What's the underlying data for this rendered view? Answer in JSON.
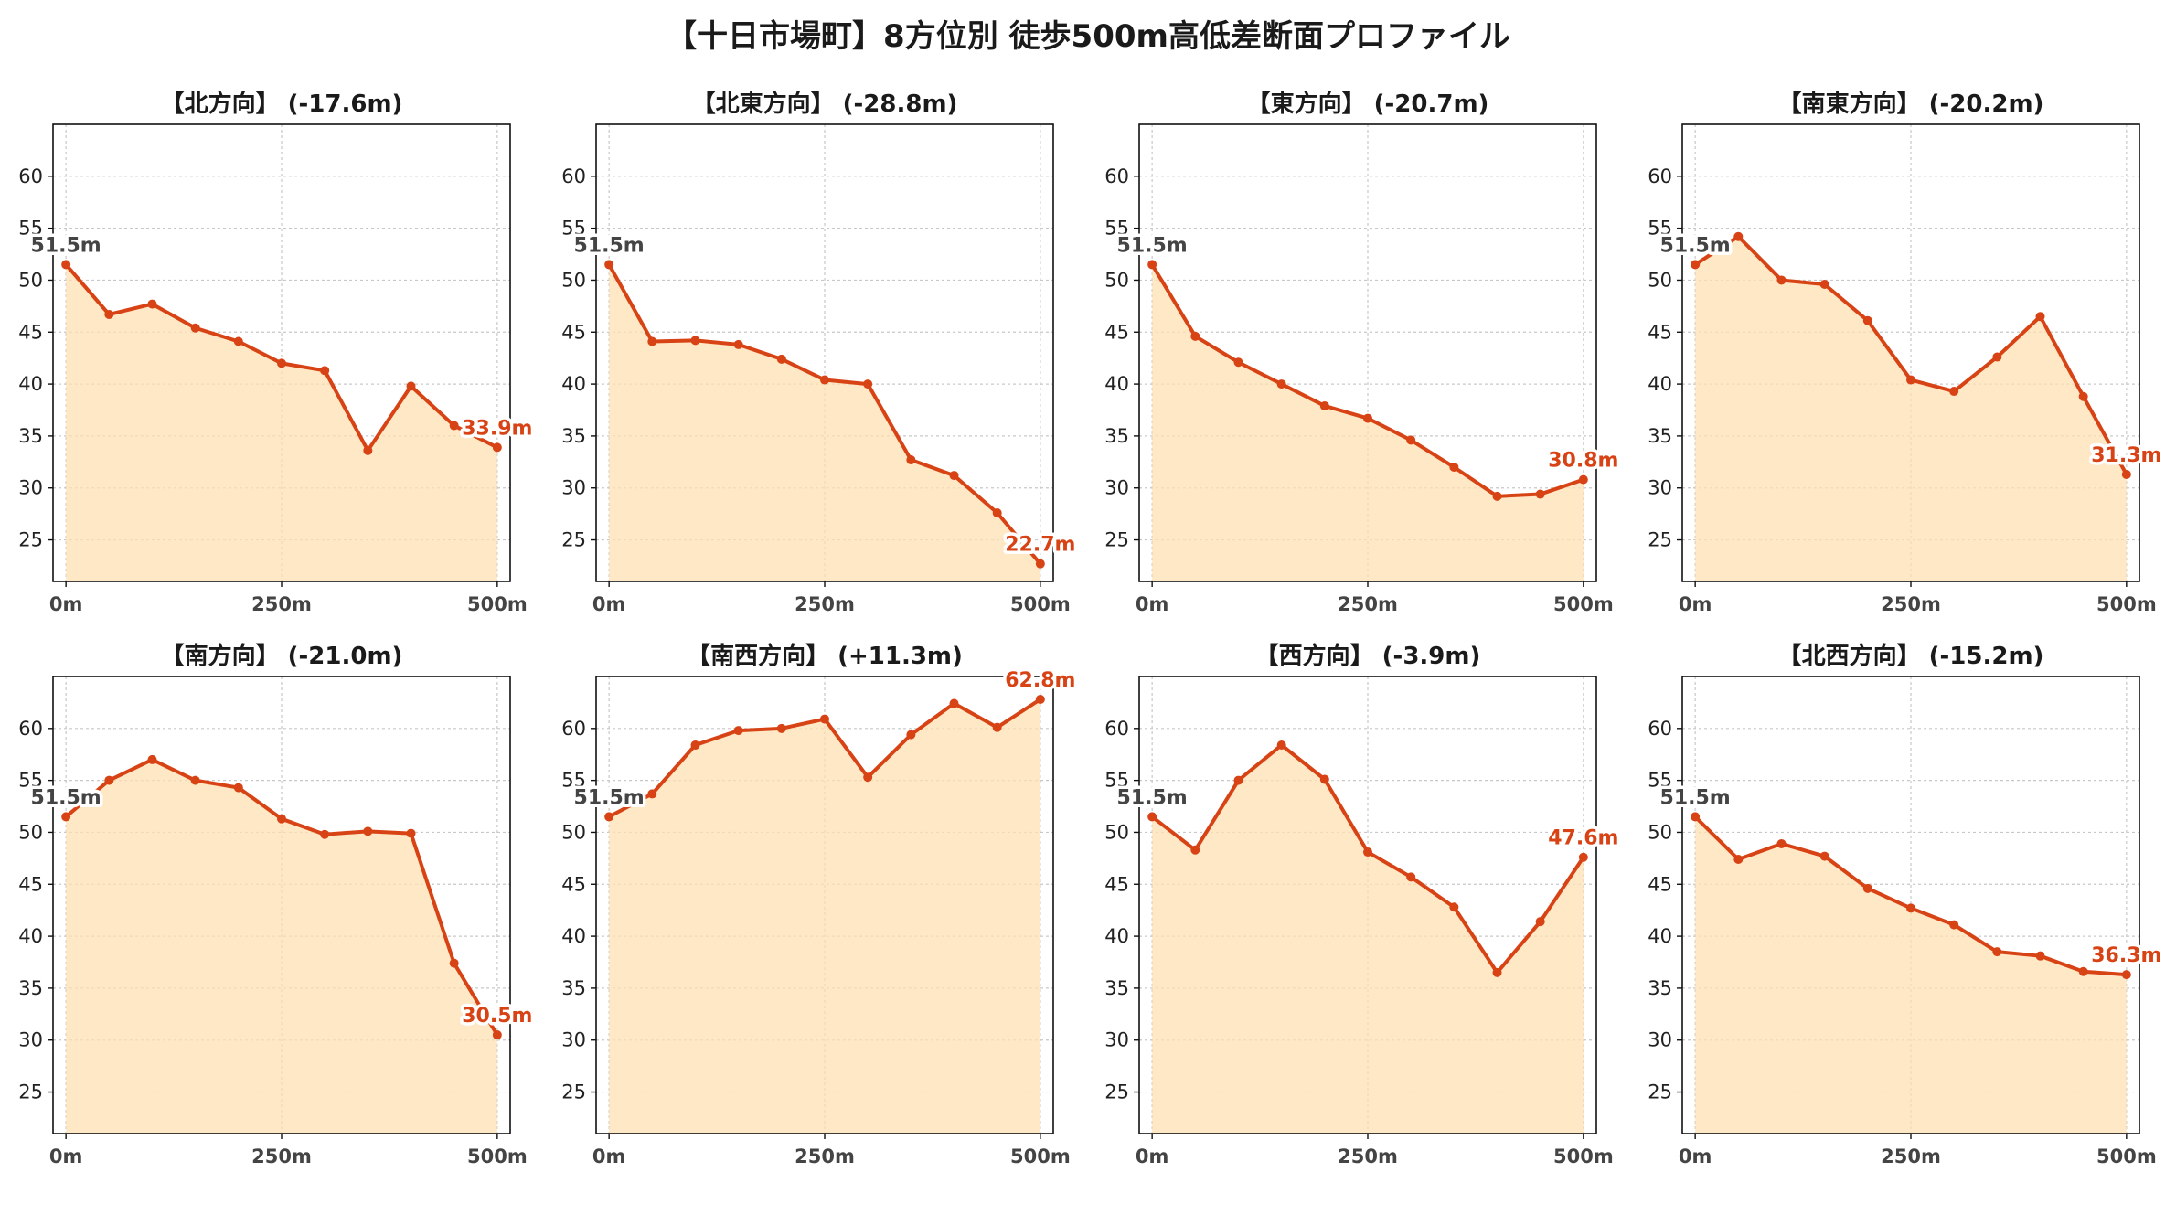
{
  "page": {
    "title": "【十日市場町】8方位別 徒歩500m高低差断面プロファイル"
  },
  "colors": {
    "line": "#d84315",
    "fill": "#ffe0b2",
    "grid": "#c8c8c8",
    "start_label": "#444444",
    "end_label": "#d84315"
  },
  "chart_data": [
    {
      "type": "area",
      "title": "【北方向】 (-17.6m)",
      "x": [
        0,
        50,
        100,
        150,
        200,
        250,
        300,
        350,
        400,
        450,
        500
      ],
      "values": [
        51.5,
        46.7,
        47.7,
        45.4,
        44.1,
        42.0,
        41.3,
        33.6,
        39.8,
        36.0,
        33.9
      ],
      "start_label": "51.5m",
      "end_label": "33.9m",
      "xticks": [
        "0m",
        "250m",
        "500m"
      ],
      "xtick_values": [
        0,
        250,
        500
      ],
      "yticks": [
        25,
        30,
        35,
        40,
        45,
        50,
        55,
        60
      ],
      "ylim": [
        21,
        65
      ],
      "xlim": [
        -15,
        515
      ],
      "grid": true
    },
    {
      "type": "area",
      "title": "【北東方向】 (-28.8m)",
      "x": [
        0,
        50,
        100,
        150,
        200,
        250,
        300,
        350,
        400,
        450,
        500
      ],
      "values": [
        51.5,
        44.1,
        44.2,
        43.8,
        42.4,
        40.4,
        40.0,
        32.7,
        31.2,
        27.6,
        22.7
      ],
      "start_label": "51.5m",
      "end_label": "22.7m",
      "xticks": [
        "0m",
        "250m",
        "500m"
      ],
      "xtick_values": [
        0,
        250,
        500
      ],
      "yticks": [
        25,
        30,
        35,
        40,
        45,
        50,
        55,
        60
      ],
      "ylim": [
        21,
        65
      ],
      "xlim": [
        -15,
        515
      ],
      "grid": true
    },
    {
      "type": "area",
      "title": "【東方向】 (-20.7m)",
      "x": [
        0,
        50,
        100,
        150,
        200,
        250,
        300,
        350,
        400,
        450,
        500
      ],
      "values": [
        51.5,
        44.6,
        42.1,
        40.0,
        37.9,
        36.7,
        34.6,
        32.0,
        29.2,
        29.4,
        30.8
      ],
      "start_label": "51.5m",
      "end_label": "30.8m",
      "xticks": [
        "0m",
        "250m",
        "500m"
      ],
      "xtick_values": [
        0,
        250,
        500
      ],
      "yticks": [
        25,
        30,
        35,
        40,
        45,
        50,
        55,
        60
      ],
      "ylim": [
        21,
        65
      ],
      "xlim": [
        -15,
        515
      ],
      "grid": true
    },
    {
      "type": "area",
      "title": "【南東方向】 (-20.2m)",
      "x": [
        0,
        50,
        100,
        150,
        200,
        250,
        300,
        350,
        400,
        450,
        500
      ],
      "values": [
        51.5,
        54.2,
        50.0,
        49.6,
        46.1,
        40.4,
        39.3,
        42.6,
        46.5,
        38.8,
        31.3
      ],
      "start_label": "51.5m",
      "end_label": "31.3m",
      "xticks": [
        "0m",
        "250m",
        "500m"
      ],
      "xtick_values": [
        0,
        250,
        500
      ],
      "yticks": [
        25,
        30,
        35,
        40,
        45,
        50,
        55,
        60
      ],
      "ylim": [
        21,
        65
      ],
      "xlim": [
        -15,
        515
      ],
      "grid": true
    },
    {
      "type": "area",
      "title": "【南方向】 (-21.0m)",
      "x": [
        0,
        50,
        100,
        150,
        200,
        250,
        300,
        350,
        400,
        450,
        500
      ],
      "values": [
        51.5,
        55.0,
        57.0,
        55.0,
        54.3,
        51.3,
        49.8,
        50.1,
        49.9,
        37.4,
        30.5
      ],
      "start_label": "51.5m",
      "end_label": "30.5m",
      "xticks": [
        "0m",
        "250m",
        "500m"
      ],
      "xtick_values": [
        0,
        250,
        500
      ],
      "yticks": [
        25,
        30,
        35,
        40,
        45,
        50,
        55,
        60
      ],
      "ylim": [
        21,
        65
      ],
      "xlim": [
        -15,
        515
      ],
      "grid": true
    },
    {
      "type": "area",
      "title": "【南西方向】 (+11.3m)",
      "x": [
        0,
        50,
        100,
        150,
        200,
        250,
        300,
        350,
        400,
        450,
        500
      ],
      "values": [
        51.5,
        53.7,
        58.4,
        59.8,
        60.0,
        60.9,
        55.3,
        59.4,
        62.4,
        60.1,
        62.8
      ],
      "start_label": "51.5m",
      "end_label": "62.8m",
      "xticks": [
        "0m",
        "250m",
        "500m"
      ],
      "xtick_values": [
        0,
        250,
        500
      ],
      "yticks": [
        25,
        30,
        35,
        40,
        45,
        50,
        55,
        60
      ],
      "ylim": [
        21,
        65
      ],
      "xlim": [
        -15,
        515
      ],
      "grid": true
    },
    {
      "type": "area",
      "title": "【西方向】 (-3.9m)",
      "x": [
        0,
        50,
        100,
        150,
        200,
        250,
        300,
        350,
        400,
        450,
        500
      ],
      "values": [
        51.5,
        48.3,
        55.0,
        58.4,
        55.1,
        48.1,
        45.7,
        42.8,
        36.5,
        41.4,
        47.6
      ],
      "start_label": "51.5m",
      "end_label": "47.6m",
      "xticks": [
        "0m",
        "250m",
        "500m"
      ],
      "xtick_values": [
        0,
        250,
        500
      ],
      "yticks": [
        25,
        30,
        35,
        40,
        45,
        50,
        55,
        60
      ],
      "ylim": [
        21,
        65
      ],
      "xlim": [
        -15,
        515
      ],
      "grid": true
    },
    {
      "type": "area",
      "title": "【北西方向】 (-15.2m)",
      "x": [
        0,
        50,
        100,
        150,
        200,
        250,
        300,
        350,
        400,
        450,
        500
      ],
      "values": [
        51.5,
        47.4,
        48.9,
        47.7,
        44.6,
        42.7,
        41.1,
        38.5,
        38.1,
        36.6,
        36.3
      ],
      "start_label": "51.5m",
      "end_label": "36.3m",
      "xticks": [
        "0m",
        "250m",
        "500m"
      ],
      "xtick_values": [
        0,
        250,
        500
      ],
      "yticks": [
        25,
        30,
        35,
        40,
        45,
        50,
        55,
        60
      ],
      "ylim": [
        21,
        65
      ],
      "xlim": [
        -15,
        515
      ],
      "grid": true
    }
  ]
}
